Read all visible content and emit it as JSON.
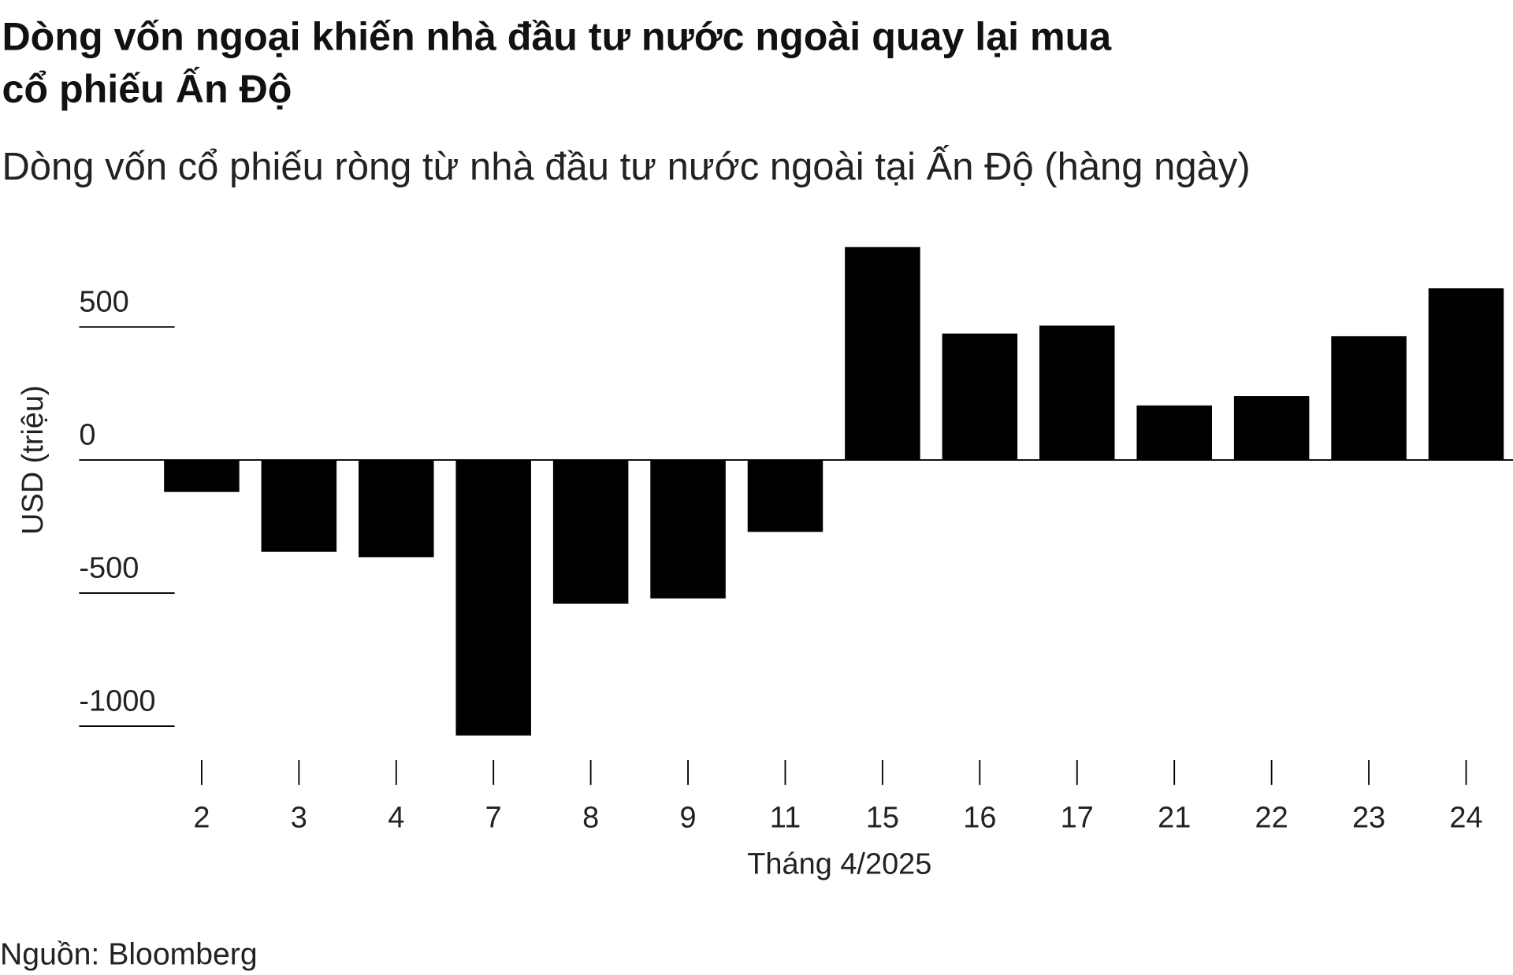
{
  "title_line1": "Dòng vốn ngoại khiến nhà đầu tư nước ngoài quay lại mua",
  "title_line2": "cổ phiếu Ấn Độ",
  "subtitle": "Dòng vốn cổ phiếu ròng từ nhà đầu tư nước ngoài tại Ấn Độ (hàng ngày)",
  "source": "Nguồn: Bloomberg",
  "chart_data": {
    "type": "bar",
    "title": "Dòng vốn cổ phiếu ròng từ nhà đầu tư nước ngoài tại Ấn Độ (hàng ngày)",
    "xlabel": "Tháng 4/2025",
    "ylabel": "USD (triệu)",
    "categories": [
      "2",
      "3",
      "4",
      "7",
      "8",
      "9",
      "11",
      "15",
      "16",
      "17",
      "21",
      "22",
      "23",
      "24"
    ],
    "values": [
      -120,
      -345,
      -365,
      -1035,
      -540,
      -520,
      -270,
      800,
      475,
      505,
      205,
      240,
      465,
      645
    ],
    "yticks": [
      "500",
      "0",
      "-500",
      "-1000"
    ],
    "ytick_values": [
      500,
      0,
      -500,
      -1000
    ],
    "ylim": [
      -1100,
      850
    ],
    "grid": false,
    "bar_color": "#000000"
  }
}
